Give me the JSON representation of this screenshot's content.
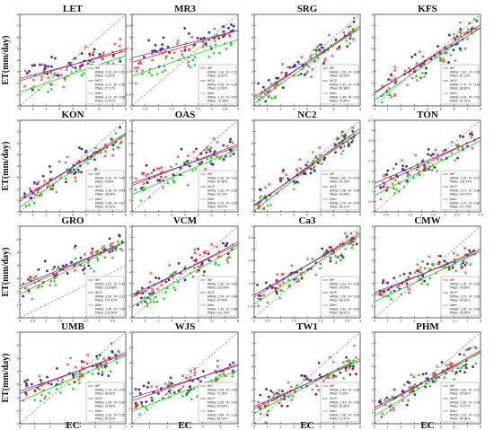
{
  "figure": {
    "ylabel": "ET(mm/day)",
    "xlabel": "EC",
    "method_colors": {
      "WP": "#d62728",
      "WCP": "#5a3aa0",
      "Allen": "#22cc22"
    },
    "panel_names": [
      "LET",
      "MR3",
      "SRG",
      "KFS",
      "KON",
      "OAS",
      "NC2",
      "TON",
      "GRO",
      "VCM",
      "Ca3",
      "CMW",
      "UMB",
      "WJS",
      "TW1",
      "PHM"
    ]
  },
  "chart_data": [
    {
      "type": "scatter",
      "title": "LET",
      "xlim": [
        0,
        8
      ],
      "ylim": [
        0,
        8
      ],
      "xticks": [
        0,
        1,
        2,
        3,
        4,
        5,
        6,
        7,
        8
      ],
      "yticks": [
        0,
        1,
        2,
        3,
        4,
        5,
        6,
        7,
        8
      ],
      "series": [
        {
          "name": "WP",
          "slope": 0.35,
          "intercept": 2.2,
          "stats": [
            "RMSE: 1.26 , R² :0.52",
            "PBias: 10.61%"
          ]
        },
        {
          "name": "WCP",
          "slope": 0.3,
          "intercept": 2.4,
          "stats": [
            "RMSE: 1.11 , R² :0.39",
            "PBias: 27.17%"
          ]
        },
        {
          "name": "Allen",
          "slope": 0.4,
          "intercept": 1.2,
          "stats": [
            "RMSE: 1.12 , R² :0.38",
            "PBias: 19.87%"
          ]
        }
      ]
    },
    {
      "type": "scatter",
      "title": "MR3",
      "xlim": [
        0,
        4
      ],
      "ylim": [
        0,
        4
      ],
      "xticks": [
        0,
        0.5,
        1,
        1.5,
        2,
        2.5,
        3,
        3.5,
        4
      ],
      "yticks": [
        0,
        0.5,
        1,
        1.5,
        2,
        2.5,
        3,
        3.5,
        4
      ],
      "series": [
        {
          "name": "WP",
          "slope": 0.35,
          "intercept": 1.9,
          "stats": [
            "RMSE: 1.04 , R² :0.11",
            "PBias: 32.57%"
          ]
        },
        {
          "name": "WCP",
          "slope": 0.3,
          "intercept": 2.1,
          "stats": [
            "RMSE: 0.96 , R² :0.24",
            "PBias: 21.95%"
          ]
        },
        {
          "name": "Allen",
          "slope": 0.4,
          "intercept": 1.3,
          "stats": [
            "RMSE: 1.12 , R² :0.07",
            "PBias: -31.66%"
          ]
        }
      ]
    },
    {
      "type": "scatter",
      "title": "SRG",
      "xlim": [
        0,
        8
      ],
      "ylim": [
        0,
        8
      ],
      "xticks": [
        0,
        1,
        2,
        3,
        4,
        5,
        6,
        7,
        8
      ],
      "yticks": [
        0,
        1,
        2,
        3,
        4,
        5,
        6,
        7,
        8
      ],
      "series": [
        {
          "name": "WP",
          "slope": 0.8,
          "intercept": 0.6,
          "stats": [
            "RMSE: 1.26 , R² :0.48",
            "PBias: 62.06%"
          ]
        },
        {
          "name": "WCP",
          "slope": 0.75,
          "intercept": 0.8,
          "stats": [
            "RMSE: 1.43 , R² :0.49",
            "PBias: 82.98%"
          ]
        },
        {
          "name": "Allen",
          "slope": 0.85,
          "intercept": 0.2,
          "stats": [
            "RMSE: 1.48 , R² :0.51",
            "PBias: 25.89%"
          ]
        }
      ]
    },
    {
      "type": "scatter",
      "title": "KFS",
      "xlim": [
        0,
        8
      ],
      "ylim": [
        0,
        8
      ],
      "xticks": [
        0,
        1,
        2,
        3,
        4,
        5,
        6,
        7,
        8
      ],
      "yticks": [
        0,
        1,
        2,
        3,
        4,
        5,
        6,
        7,
        8
      ],
      "series": [
        {
          "name": "WP",
          "slope": 0.75,
          "intercept": 1.1,
          "stats": [
            "RMSE: 1.81 , R² :0.43",
            "PBias: 87.11%"
          ]
        },
        {
          "name": "WCP",
          "slope": 0.7,
          "intercept": 1.2,
          "stats": [
            "RMSE: 1.75 , R² :0.34",
            "PBias: 64.82%"
          ]
        },
        {
          "name": "Allen",
          "slope": 0.8,
          "intercept": 0.5,
          "stats": [
            "RMSE: 2.16 , R² :0.51",
            "PBias: 92.22%"
          ]
        }
      ]
    },
    {
      "type": "scatter",
      "title": "KON",
      "xlim": [
        0,
        8
      ],
      "ylim": [
        0,
        8
      ],
      "xticks": [
        0,
        1,
        2,
        3,
        4,
        5,
        6,
        7,
        8
      ],
      "yticks": [
        0,
        1,
        2,
        3,
        4,
        5,
        6,
        7,
        8
      ],
      "series": [
        {
          "name": "WP",
          "slope": 0.75,
          "intercept": 0.9,
          "stats": [
            "RMSE: 1.51 , R² :0.40",
            "PBias: 9.64%"
          ]
        },
        {
          "name": "WCP",
          "slope": 0.7,
          "intercept": 1.1,
          "stats": [
            "RMSE: 1.46 , R² :0.43",
            "PBias: 28.54%"
          ]
        },
        {
          "name": "Allen",
          "slope": 0.8,
          "intercept": 0.4,
          "stats": [
            "RMSE: 1.58 , R² :0.87",
            "PBias: 30.18%"
          ]
        }
      ]
    },
    {
      "type": "scatter",
      "title": "OAS",
      "xlim": [
        0,
        8
      ],
      "ylim": [
        0,
        8
      ],
      "xticks": [
        0,
        1,
        2,
        3,
        4,
        5,
        6,
        7,
        8
      ],
      "yticks": [
        0,
        1,
        2,
        3,
        4,
        5,
        6,
        7,
        8
      ],
      "series": [
        {
          "name": "WP",
          "slope": 0.45,
          "intercept": 2.3,
          "stats": [
            "RMSE: 1.82 , R² :0.31",
            "PBias: 87.88%"
          ]
        },
        {
          "name": "WCP",
          "slope": 0.4,
          "intercept": 2.5,
          "stats": [
            "RMSE: 1.60 , R² :0.26",
            "PBias: 62.11%"
          ]
        },
        {
          "name": "Allen",
          "slope": 0.5,
          "intercept": 1.5,
          "stats": [
            "RMSE: 1.72 , R² :0.29",
            "PBias: 48.57%"
          ]
        }
      ]
    },
    {
      "type": "scatter",
      "title": "NC2",
      "xlim": [
        0,
        8
      ],
      "ylim": [
        0,
        8
      ],
      "xticks": [
        0,
        1,
        2,
        3,
        4,
        5,
        6,
        7,
        8
      ],
      "yticks": [
        0,
        1,
        2,
        3,
        4,
        5,
        6,
        7,
        8
      ],
      "series": [
        {
          "name": "WP",
          "slope": 0.85,
          "intercept": 0.5,
          "stats": [
            "RMSE: 1.60 , R² :0.44",
            "PBias: 26.78%"
          ]
        },
        {
          "name": "WCP",
          "slope": 0.8,
          "intercept": 0.6,
          "stats": [
            "RMSE: 1.58 , R² :0.48",
            "PBias: 29.69%"
          ]
        },
        {
          "name": "Allen",
          "slope": 0.9,
          "intercept": 0.1,
          "stats": [
            "RMSE: 1.74 , R² :0.47",
            "PBias: 35.21%"
          ]
        }
      ]
    },
    {
      "type": "scatter",
      "title": "TON",
      "xlim": [
        0,
        4.5
      ],
      "ylim": [
        0,
        4.5
      ],
      "xticks": [
        0,
        0.5,
        1,
        1.5,
        2,
        2.5,
        3,
        3.5,
        4,
        4.5
      ],
      "yticks": [
        0,
        0.5,
        1,
        1.5,
        2,
        2.5,
        3,
        3.5,
        4,
        4.5
      ],
      "series": [
        {
          "name": "WP",
          "slope": 0.55,
          "intercept": 1.2,
          "stats": [
            "RMSE: 2.05 , R² :0.27",
            "PBias: 130.74%"
          ]
        },
        {
          "name": "WCP",
          "slope": 0.5,
          "intercept": 1.4,
          "stats": [
            "RMSE: 2.07 , R² :0.28",
            "PBias: 147.97%"
          ]
        },
        {
          "name": "Allen",
          "slope": 0.6,
          "intercept": 0.8,
          "stats": [
            "RMSE: 1.70 , R² :0.34",
            "PBias: 117.76%"
          ]
        }
      ]
    },
    {
      "type": "scatter",
      "title": "GRO",
      "xlim": [
        0,
        4
      ],
      "ylim": [
        0,
        7
      ],
      "xticks": [
        0,
        0.5,
        1,
        1.5,
        2,
        2.5,
        3,
        3.5
      ],
      "yticks": [
        0,
        1,
        2,
        3,
        4,
        5,
        6,
        7
      ],
      "series": [
        {
          "name": "WP",
          "slope": 0.9,
          "intercept": 2.2,
          "stats": [
            "RMSE: 2.62 , R² :0.29",
            "PBias: 151.88%"
          ]
        },
        {
          "name": "WCP",
          "slope": 0.85,
          "intercept": 2.4,
          "stats": [
            "RMSE: 2.85 , R² :0.31",
            "PBias: 157.81%"
          ]
        },
        {
          "name": "Allen",
          "slope": 1.0,
          "intercept": 1.8,
          "stats": [
            "RMSE: 2.46 , R² :0.30",
            "PBias: 131.96%"
          ]
        }
      ]
    },
    {
      "type": "scatter",
      "title": "VCM",
      "xlim": [
        0,
        8
      ],
      "ylim": [
        0,
        8
      ],
      "xticks": [
        0,
        1,
        2,
        3,
        4,
        5,
        6,
        7,
        8
      ],
      "yticks": [
        0,
        1,
        2,
        3,
        4,
        5,
        6,
        7,
        8
      ],
      "series": [
        {
          "name": "WP",
          "slope": 0.6,
          "intercept": 1.8,
          "stats": [
            "RMSE: 1.80 , R² :0.52",
            "PBias: 115.69%"
          ]
        },
        {
          "name": "WCP",
          "slope": 0.55,
          "intercept": 2.0,
          "stats": [
            "RMSE: 1.54 , R² :0.48",
            "PBias: 97.99%"
          ]
        },
        {
          "name": "Allen",
          "slope": 0.65,
          "intercept": 1.0,
          "stats": [
            "RMSE: 1.49 , R² :0.38",
            "PBias: 101.19%"
          ]
        }
      ]
    },
    {
      "type": "scatter",
      "title": "Ca3",
      "xlim": [
        0,
        4
      ],
      "ylim": [
        0,
        4
      ],
      "xticks": [
        0,
        0.5,
        1,
        1.5,
        2,
        2.5,
        3,
        3.5,
        4
      ],
      "yticks": [
        0,
        0.5,
        1,
        1.5,
        2,
        2.5,
        3,
        3.5,
        4
      ],
      "series": [
        {
          "name": "WP",
          "slope": 0.7,
          "intercept": 0.9,
          "stats": [
            "RMSE: 1.61 , R² :0.05",
            "PBias: 75.06%"
          ]
        },
        {
          "name": "WCP",
          "slope": 0.65,
          "intercept": 1.0,
          "stats": [
            "RMSE: 1.60 , R² :0.05",
            "PBias: 66.91%"
          ]
        },
        {
          "name": "Allen",
          "slope": 0.75,
          "intercept": 0.6,
          "stats": [
            "RMSE: 1.62 , R² :0.02",
            "PBias: 88.81%"
          ]
        }
      ]
    },
    {
      "type": "scatter",
      "title": "CMW",
      "xlim": [
        0,
        8
      ],
      "ylim": [
        0,
        8
      ],
      "xticks": [
        0,
        1,
        2,
        3,
        4,
        5,
        6,
        7,
        8
      ],
      "yticks": [
        0,
        1,
        2,
        3,
        4,
        5,
        6,
        7,
        8
      ],
      "series": [
        {
          "name": "WP",
          "slope": 0.5,
          "intercept": 2.0,
          "stats": [
            "RMSE: 1.28 , R² :0.61",
            "PBias: 39.85%"
          ]
        },
        {
          "name": "WCP",
          "slope": 0.45,
          "intercept": 2.2,
          "stats": [
            "RMSE: 1.01 , R² :0.56",
            "PBias: 25.82%"
          ]
        },
        {
          "name": "Allen",
          "slope": 0.55,
          "intercept": 1.4,
          "stats": [
            "RMSE: 1.35 , R² :0.63",
            "PBias: 35.59%"
          ]
        }
      ]
    },
    {
      "type": "scatter",
      "title": "UMB",
      "xlim": [
        0,
        7
      ],
      "ylim": [
        0,
        7
      ],
      "xticks": [
        0,
        1,
        2,
        3,
        4,
        5,
        6,
        7
      ],
      "yticks": [
        0,
        1,
        2,
        3,
        4,
        5,
        6,
        7
      ],
      "series": [
        {
          "name": "WP",
          "slope": 0.45,
          "intercept": 2.3,
          "stats": [
            "RMSE: 1.72 , R² :0.42",
            "PBias: 48.83%"
          ]
        },
        {
          "name": "WCP",
          "slope": 0.4,
          "intercept": 2.5,
          "stats": [
            "RMSE: 1.69 , R² :0.39",
            "PBias: 31.89%"
          ]
        },
        {
          "name": "Allen",
          "slope": 0.5,
          "intercept": 1.7,
          "stats": [
            "RMSE: 2.33 , R² :0.25",
            "PBias: 62.81%"
          ]
        }
      ]
    },
    {
      "type": "scatter",
      "title": "WJS",
      "xlim": [
        0,
        6
      ],
      "ylim": [
        0,
        6
      ],
      "xticks": [
        0,
        1,
        2,
        3,
        4,
        5,
        6
      ],
      "yticks": [
        0,
        1,
        2,
        3,
        4,
        5,
        6
      ],
      "series": [
        {
          "name": "WP",
          "slope": 0.4,
          "intercept": 1.5,
          "stats": [
            "RMSE: 0.65 , R² :0.54",
            "PBias: 71.39%"
          ]
        },
        {
          "name": "WCP",
          "slope": 0.35,
          "intercept": 1.7,
          "stats": [
            "RMSE: 0.83 , R² :0.41",
            "PBias: 57.84%"
          ]
        },
        {
          "name": "Allen",
          "slope": 0.45,
          "intercept": 0.8,
          "stats": [
            "RMSE: 0.84 , R² :0.14",
            "PBias: 82.91%"
          ]
        }
      ]
    },
    {
      "type": "scatter",
      "title": "TW1",
      "xlim": [
        0,
        8
      ],
      "ylim": [
        0,
        8
      ],
      "xticks": [
        0,
        1,
        2,
        3,
        4,
        5,
        6,
        7,
        8
      ],
      "yticks": [
        0,
        1,
        2,
        3,
        4,
        5,
        6,
        7,
        8
      ],
      "series": [
        {
          "name": "WP",
          "slope": 0.55,
          "intercept": 1.3,
          "stats": [
            "RMSE: 1.45 , R² :0.56",
            "PBias: 4.19%"
          ]
        },
        {
          "name": "WCP",
          "slope": 0.5,
          "intercept": 1.5,
          "stats": [
            "RMSE: 1.43 , R² :0.55",
            "PBias: 15.85%"
          ]
        },
        {
          "name": "Allen",
          "slope": 0.6,
          "intercept": 0.9,
          "stats": [
            "RMSE: 1.58 , R² :0.47",
            "PBias: 12.47%"
          ]
        }
      ]
    },
    {
      "type": "scatter",
      "title": "PHM",
      "xlim": [
        0,
        8
      ],
      "ylim": [
        0,
        8
      ],
      "xticks": [
        0,
        1,
        2,
        3,
        4,
        5,
        6,
        7,
        8
      ],
      "yticks": [
        0,
        1,
        2,
        3,
        4,
        5,
        6,
        7,
        8
      ],
      "series": [
        {
          "name": "WP",
          "slope": 0.65,
          "intercept": 1.2,
          "stats": [
            "RMSE: 1.60 , R² :0.21",
            "PBias: 29.94%"
          ]
        },
        {
          "name": "WCP",
          "slope": 0.6,
          "intercept": 1.4,
          "stats": [
            "RMSE: 1.85 , R² :0.34",
            "PBias: 72.07%"
          ]
        },
        {
          "name": "Allen",
          "slope": 0.7,
          "intercept": 0.7,
          "stats": [
            "RMSE: 2.23 , R² :0.21",
            "PBias: 84.58%"
          ]
        }
      ]
    }
  ]
}
